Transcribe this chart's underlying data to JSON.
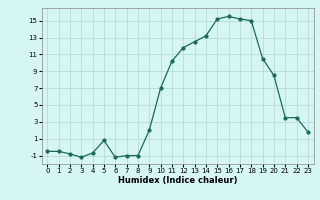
{
  "x": [
    0,
    1,
    2,
    3,
    4,
    5,
    6,
    7,
    8,
    9,
    10,
    11,
    12,
    13,
    14,
    15,
    16,
    17,
    18,
    19,
    20,
    21,
    22,
    23
  ],
  "y": [
    -0.5,
    -0.5,
    -0.8,
    -1.2,
    -0.7,
    0.8,
    -1.2,
    -1.0,
    -1.0,
    2.0,
    7.0,
    10.2,
    11.8,
    12.5,
    13.2,
    15.2,
    15.5,
    15.2,
    15.0,
    10.5,
    8.5,
    3.5,
    3.5,
    1.8
  ],
  "line_color": "#1a6b5a",
  "marker": "o",
  "marker_size": 2,
  "bg_color": "#d6f5f5",
  "grid_color": "#b8dada",
  "xlabel": "Humidex (Indice chaleur)",
  "xlabel_fontsize": 6.0,
  "ylim": [
    -2,
    16.5
  ],
  "xlim": [
    -0.5,
    23.5
  ],
  "yticks": [
    -1,
    1,
    3,
    5,
    7,
    9,
    11,
    13,
    15
  ],
  "xtick_labels": [
    "0",
    "1",
    "2",
    "3",
    "4",
    "5",
    "6",
    "7",
    "8",
    "9",
    "10",
    "11",
    "12",
    "13",
    "14",
    "15",
    "16",
    "17",
    "18",
    "19",
    "20",
    "21",
    "22",
    "23"
  ],
  "tick_fontsize": 5.0,
  "linewidth": 0.9
}
